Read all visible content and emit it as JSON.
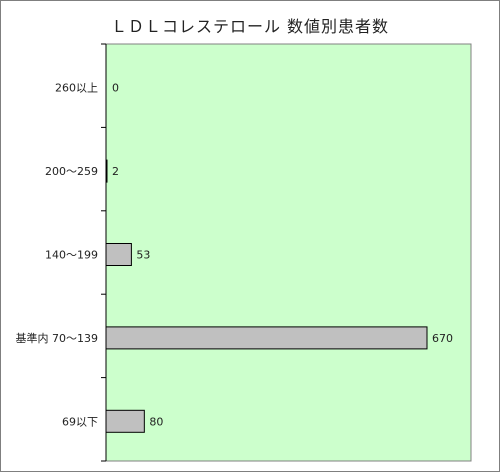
{
  "chart_data": {
    "type": "bar",
    "orientation": "horizontal",
    "title": "ＬＤＬコレステロール 数値別患者数",
    "categories": [
      "260以上",
      "200～259",
      "140～199",
      "基準内 70～139",
      "69以下"
    ],
    "values": [
      0,
      2,
      53,
      670,
      80
    ],
    "xlim": [
      0,
      700
    ],
    "grid": false,
    "legend": "none",
    "colors": {
      "plot_background": "#ccffcc",
      "bar_fill": "#c0c0c0",
      "bar_stroke": "#000000",
      "frame_stroke": "#7f7f7f"
    }
  }
}
